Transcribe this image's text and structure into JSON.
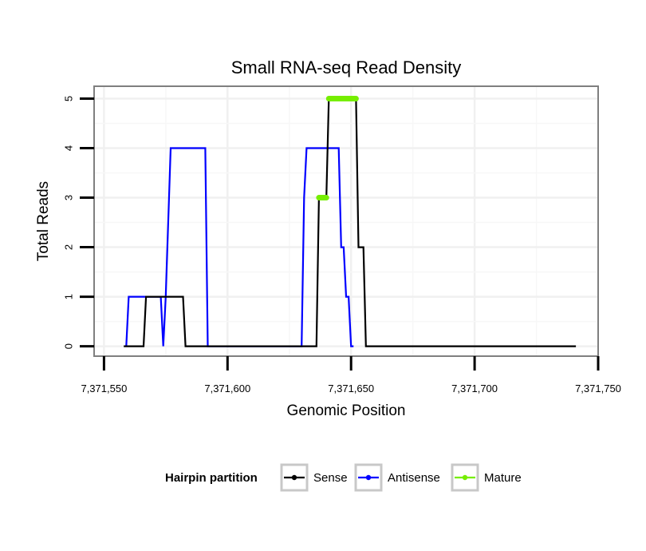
{
  "chart_data": {
    "type": "line",
    "title": "Small RNA-seq Read Density",
    "xlabel": "Genomic Position",
    "ylabel": "Total Reads",
    "xlim": [
      7371546,
      7371750
    ],
    "ylim": [
      -0.2,
      5.25
    ],
    "x_ticks": [
      7371550,
      7371600,
      7371650,
      7371700,
      7371750
    ],
    "x_tick_labels": [
      "7,371,550",
      "7,371,600",
      "7,371,650",
      "7,371,700",
      "7,371,750"
    ],
    "y_ticks": [
      0,
      1,
      2,
      3,
      4,
      5
    ],
    "y_tick_labels": [
      "0",
      "1",
      "2",
      "3",
      "4",
      "5"
    ],
    "grid": true,
    "legend": {
      "title": "Hairpin partition",
      "position": "bottom",
      "entries": [
        "Sense",
        "Antisense",
        "Mature"
      ]
    },
    "series": [
      {
        "name": "Antisense",
        "color": "#0000ff",
        "x": [
          7371559,
          7371560,
          7371573,
          7371574,
          7371575,
          7371577,
          7371591,
          7371592,
          7371630,
          7371631,
          7371632,
          7371645,
          7371646,
          7371647,
          7371648,
          7371649,
          7371650,
          7371651
        ],
        "y": [
          0,
          1,
          1,
          0,
          1,
          4,
          4,
          0,
          0,
          3,
          4,
          4,
          2,
          2,
          1,
          1,
          0,
          0
        ]
      },
      {
        "name": "Sense",
        "color": "#000000",
        "x": [
          7371558,
          7371566,
          7371567,
          7371582,
          7371583,
          7371636,
          7371637,
          7371640,
          7371641,
          7371652,
          7371653,
          7371655,
          7371656,
          7371741
        ],
        "y": [
          0,
          0,
          1,
          1,
          0,
          0,
          3,
          3,
          5,
          5,
          2,
          2,
          0,
          0
        ]
      },
      {
        "name": "Mature",
        "color": "#76ee00",
        "segments": [
          {
            "x": [
              7371637,
              7371640
            ],
            "y": [
              3,
              3
            ]
          },
          {
            "x": [
              7371641,
              7371652
            ],
            "y": [
              5,
              5
            ]
          }
        ]
      }
    ]
  }
}
